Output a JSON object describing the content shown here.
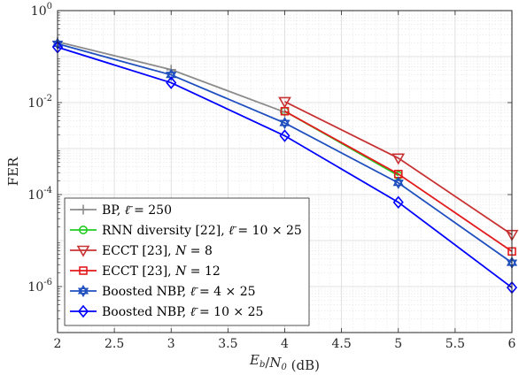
{
  "chart_data": {
    "type": "line",
    "xlabel": "E_b/N_0 (dB)",
    "ylabel": "FER",
    "xlim": [
      2,
      6
    ],
    "ylim": [
      1e-07,
      1
    ],
    "yscale": "log",
    "grid": true,
    "legend_position": "bottom-left",
    "x_ticks": [
      "2",
      "2.5",
      "3",
      "3.5",
      "4",
      "4.5",
      "5",
      "5.5",
      "6"
    ],
    "y_ticks": [
      {
        "value": 1,
        "exp": "0"
      },
      {
        "value": 0.01,
        "exp": "-2"
      },
      {
        "value": 0.0001,
        "exp": "-4"
      },
      {
        "value": 1e-06,
        "exp": "-6"
      }
    ],
    "series": [
      {
        "name": "BP, ℓ̄ = 250",
        "color": "#8c8c8c",
        "marker": "plus",
        "x": [
          2,
          3,
          4
        ],
        "y": [
          0.21,
          0.052,
          0.0062
        ]
      },
      {
        "name": "RNN diversity [22], ℓ̄ = 10 × 25",
        "color": "#22cc22",
        "marker": "circle",
        "x": [
          4,
          5
        ],
        "y": [
          0.0065,
          0.00026
        ]
      },
      {
        "name": "ECCT [23], N = 8",
        "color": "#c83232",
        "marker": "triangle-down",
        "x": [
          4,
          5,
          6
        ],
        "y": [
          0.0105,
          0.00062,
          1.35e-05
        ]
      },
      {
        "name": "ECCT [23], N = 12",
        "color": "#e31a1c",
        "marker": "square",
        "x": [
          4,
          5,
          6
        ],
        "y": [
          0.0065,
          0.00028,
          5.8e-06
        ]
      },
      {
        "name": "Boosted NBP, ℓ̄ = 4 × 25",
        "color": "#1f4fbf",
        "marker": "hexagram",
        "x": [
          2,
          3,
          4,
          5,
          6
        ],
        "y": [
          0.19,
          0.04,
          0.0036,
          0.00018,
          3.3e-06
        ]
      },
      {
        "name": "Boosted NBP, ℓ̄ = 10 × 25",
        "color": "#0000ff",
        "marker": "diamond",
        "x": [
          2,
          3,
          4,
          5,
          6
        ],
        "y": [
          0.16,
          0.027,
          0.0019,
          6.8e-05,
          9.5e-07
        ]
      }
    ]
  }
}
